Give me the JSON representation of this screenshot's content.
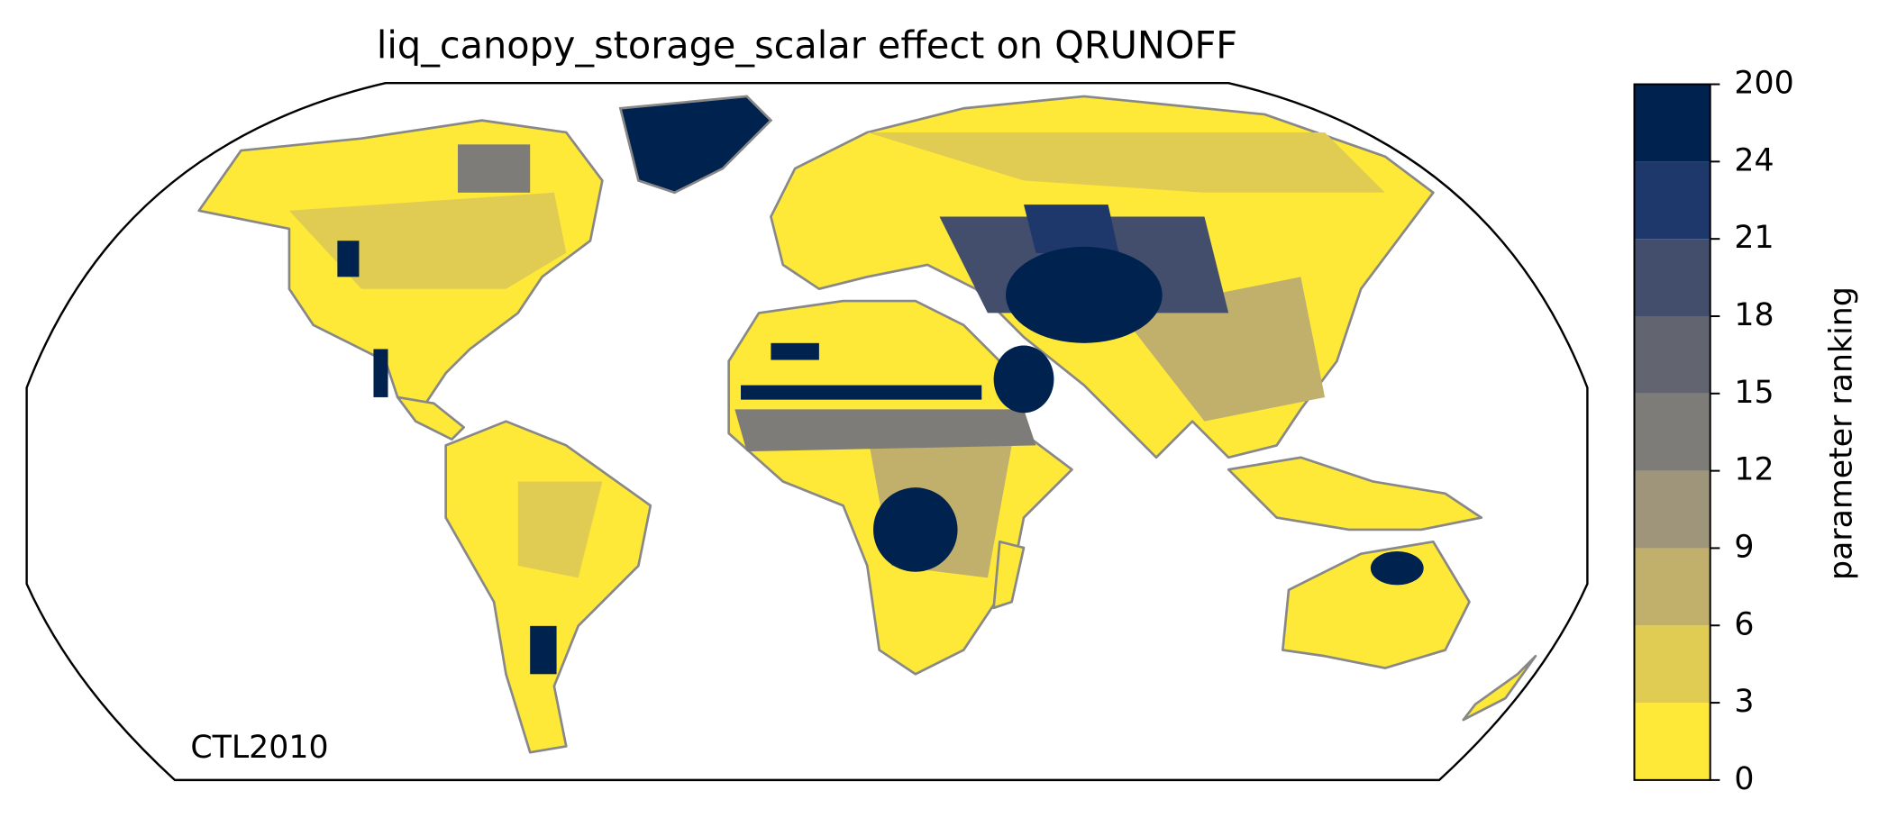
{
  "title": "liq_canopy_storage_scalar effect on QRUNOFF",
  "annotation": "CTL2010",
  "colorbar": {
    "label": "parameter ranking",
    "ticks": [
      0,
      3,
      6,
      9,
      12,
      15,
      18,
      21,
      24,
      200
    ],
    "colors": [
      "#fee838",
      "#e0cc52",
      "#c0b06c",
      "#9e957b",
      "#7e7c78",
      "#62656f",
      "#434e6c",
      "#1f386b",
      "#00224e"
    ]
  }
}
